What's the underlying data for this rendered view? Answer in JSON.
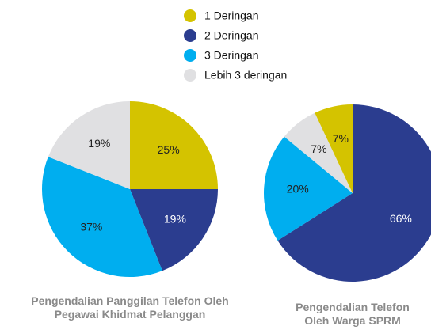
{
  "chart_data": [
    {
      "type": "pie",
      "title": "Pengendalian Panggilan Telefon Oleh Pegawai Khidmat Pelanggan",
      "categories": [
        "1 Deringan",
        "2 Deringan",
        "3 Deringan",
        "Lebih 3 deringan"
      ],
      "values": [
        25,
        19,
        37,
        19
      ],
      "value_labels": [
        "25%",
        "19%",
        "37%",
        "19%"
      ],
      "colors": [
        "#d4c300",
        "#2b3d8f",
        "#00aeef",
        "#e0e0e2"
      ]
    },
    {
      "type": "pie",
      "title": "Pengendalian Telefon Oleh Warga SPRM",
      "categories": [
        "2 Deringan",
        "3 Deringan",
        "Lebih 3 deringan",
        "1 Deringan"
      ],
      "values": [
        66,
        20,
        7,
        7
      ],
      "value_labels": [
        "66%",
        "20%",
        "7%",
        "7%"
      ],
      "colors": [
        "#2b3d8f",
        "#00aeef",
        "#e0e0e2",
        "#d4c300"
      ]
    }
  ]
}
